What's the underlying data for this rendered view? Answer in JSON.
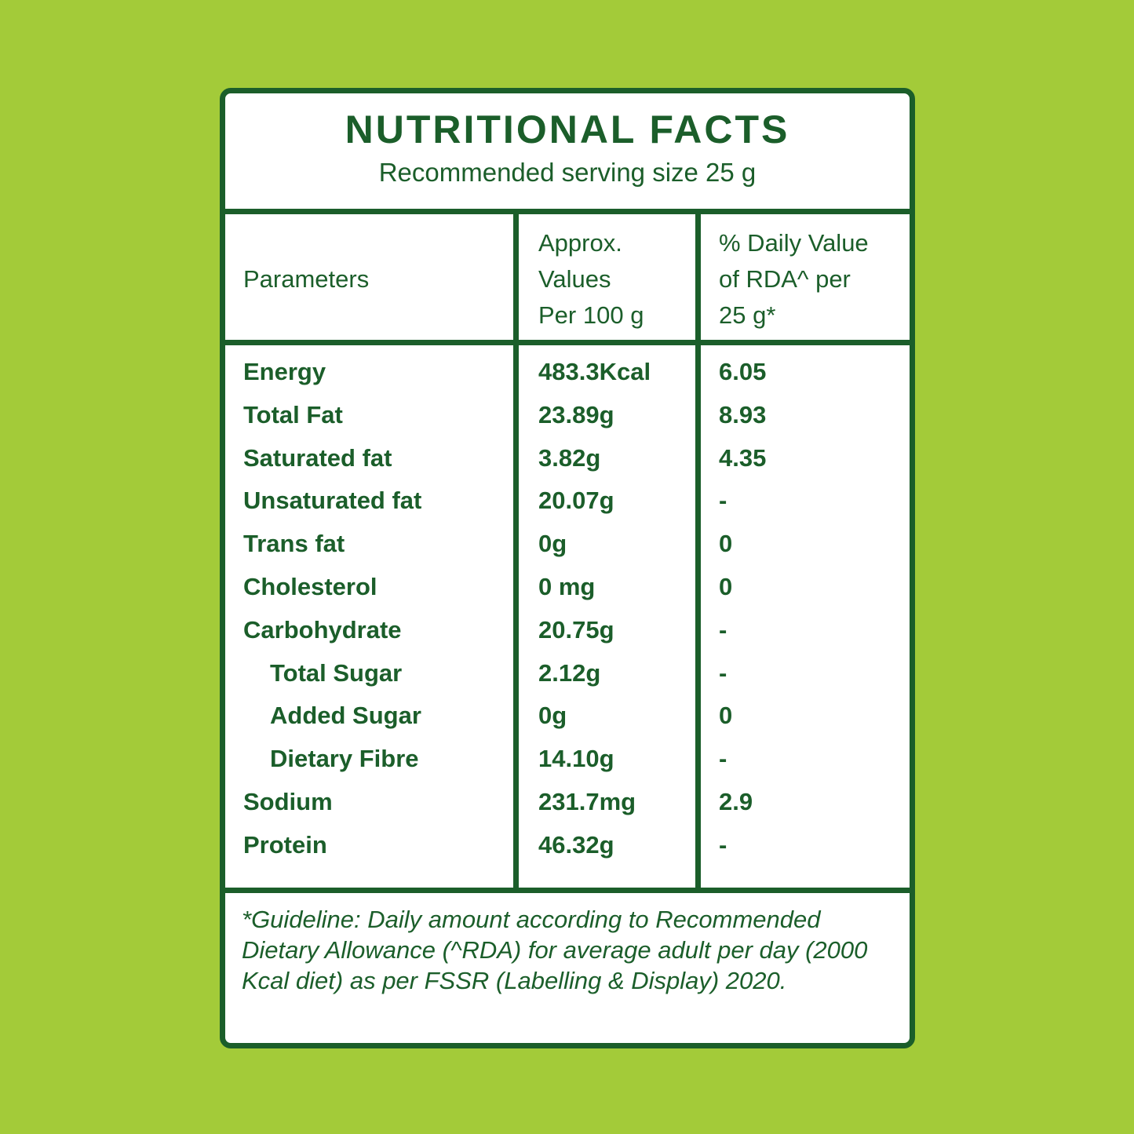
{
  "header": {
    "title": "NUTRITIONAL FACTS",
    "subtitle": "Recommended serving size 25 g"
  },
  "table": {
    "columns": [
      "Parameters",
      "Approx.\nValues\nPer 100 g",
      "% Daily Value\nof RDA^ per\n25 g*"
    ],
    "rows": [
      {
        "cells": [
          "Energy",
          "483.3Kcal",
          "6.05"
        ]
      },
      {
        "cells": [
          "Total Fat",
          "23.89g",
          "8.93"
        ]
      },
      {
        "cells": [
          "Saturated fat",
          "3.82g",
          "4.35"
        ]
      },
      {
        "cells": [
          "Unsaturated fat",
          "20.07g",
          "-"
        ]
      },
      {
        "cells": [
          "Trans fat",
          "0g",
          "0"
        ]
      },
      {
        "cells": [
          "Cholesterol",
          "0 mg",
          "0"
        ]
      },
      {
        "cells": [
          "Carbohydrate",
          "20.75g",
          "-"
        ],
        "sub_rows": [
          [
            "Total Sugar",
            "2.12g",
            "-"
          ],
          [
            "Added Sugar",
            "0g",
            "0"
          ],
          [
            "Dietary Fibre",
            "14.10g",
            "-"
          ]
        ]
      },
      {
        "cells": [
          "Sodium",
          "231.7mg",
          "2.9"
        ]
      },
      {
        "cells": [
          "Protein",
          "46.32g",
          "-"
        ]
      }
    ]
  },
  "footnote": "*Guideline: Daily amount according to Recommended Dietary Allowance (^RDA) for average adult per day (2000 Kcal diet) as per FSSR (Labelling & Display) 2020."
}
